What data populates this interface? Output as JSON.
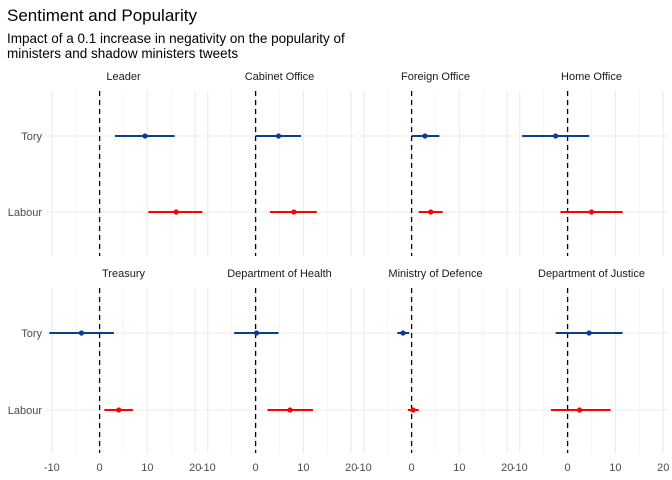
{
  "chart_data": {
    "type": "scatter",
    "subtype": "faceted-point-range",
    "title": "Sentiment and Popularity",
    "subtitle_lines": [
      "Impact of a 0.1 increase in negativity on the popularity of",
      "ministers and shadow ministers tweets"
    ],
    "xlabel": "",
    "ylabel": "",
    "xlim": [
      -11,
      21
    ],
    "x_ticks": [
      -10,
      0,
      10,
      20
    ],
    "x_tick_labels": [
      "-10",
      "0",
      "10",
      "20"
    ],
    "y_categories": [
      "Tory",
      "Labour"
    ],
    "reference_line_x": 0,
    "grid": true,
    "legend": "none",
    "colors": {
      "Tory": "#0b3d91",
      "Labour": "#ff0000",
      "reference_line": "#000000"
    },
    "facets": [
      {
        "name": "Leader",
        "series": [
          {
            "party": "Tory",
            "estimate": 9.5,
            "low": 3.2,
            "high": 15.7
          },
          {
            "party": "Labour",
            "estimate": 16.0,
            "low": 10.2,
            "high": 21.5
          }
        ]
      },
      {
        "name": "Cabinet Office",
        "series": [
          {
            "party": "Tory",
            "estimate": 4.8,
            "low": 0.0,
            "high": 9.5
          },
          {
            "party": "Labour",
            "estimate": 8.0,
            "low": 3.0,
            "high": 12.8
          }
        ]
      },
      {
        "name": "Foreign Office",
        "series": [
          {
            "party": "Tory",
            "estimate": 2.8,
            "low": 0.0,
            "high": 5.8
          },
          {
            "party": "Labour",
            "estimate": 4.0,
            "low": 1.5,
            "high": 6.5
          }
        ]
      },
      {
        "name": "Home Office",
        "series": [
          {
            "party": "Tory",
            "estimate": -2.5,
            "low": -9.5,
            "high": 4.5
          },
          {
            "party": "Labour",
            "estimate": 5.0,
            "low": -1.5,
            "high": 11.5
          }
        ]
      },
      {
        "name": "Treasury",
        "series": [
          {
            "party": "Tory",
            "estimate": -3.8,
            "low": -10.5,
            "high": 3.0
          },
          {
            "party": "Labour",
            "estimate": 4.0,
            "low": 1.0,
            "high": 7.0
          }
        ]
      },
      {
        "name": "Department of Health",
        "series": [
          {
            "party": "Tory",
            "estimate": 0.2,
            "low": -4.5,
            "high": 4.8
          },
          {
            "party": "Labour",
            "estimate": 7.2,
            "low": 2.5,
            "high": 12.0
          }
        ]
      },
      {
        "name": "Ministry of Defence",
        "series": [
          {
            "party": "Tory",
            "estimate": -1.8,
            "low": -3.0,
            "high": -0.5
          },
          {
            "party": "Labour",
            "estimate": 0.3,
            "low": -0.8,
            "high": 1.5
          }
        ]
      },
      {
        "name": "Department of Justice",
        "series": [
          {
            "party": "Tory",
            "estimate": 4.5,
            "low": -2.5,
            "high": 11.5
          },
          {
            "party": "Labour",
            "estimate": 2.5,
            "low": -3.5,
            "high": 9.0
          }
        ]
      }
    ]
  }
}
